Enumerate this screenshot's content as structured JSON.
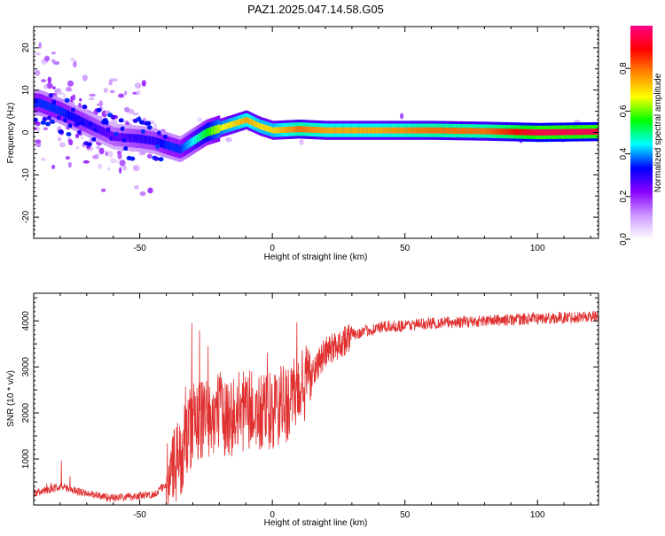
{
  "title": "PAZ1.2025.047.14.58.G05",
  "chart_data": [
    {
      "type": "heatmap",
      "xlabel": "Height of straight line (km)",
      "ylabel": "Frequency (Hz)",
      "xlim": [
        -90,
        123
      ],
      "ylim": [
        -25,
        25
      ],
      "x_ticks": [
        -50,
        0,
        50,
        100
      ],
      "y_ticks": [
        -20,
        -10,
        0,
        10,
        20
      ],
      "colorbar": {
        "label": "Normalized spectral amplitude",
        "range": [
          0,
          1
        ],
        "ticks": [
          "0.0",
          "0.2",
          "0.4",
          "0.6",
          "0.8"
        ],
        "colors": [
          "#ffffff",
          "#cc99ff",
          "#8800ff",
          "#0000ff",
          "#00ffff",
          "#00ff00",
          "#ffff00",
          "#ff8800",
          "#ff0000",
          "#ff0088"
        ]
      },
      "ridge": {
        "x": [
          -88,
          -80,
          -70,
          -60,
          -50,
          -45,
          -40,
          -35,
          -30,
          -25,
          -20,
          -15,
          -10,
          -5,
          0,
          10,
          20,
          40,
          60,
          80,
          100,
          123
        ],
        "freq_hz": [
          7,
          5,
          2,
          -1,
          -1.5,
          -2,
          -3,
          -4,
          -2,
          0,
          1,
          2,
          3,
          1.5,
          0.5,
          0.8,
          0.5,
          0.5,
          0.5,
          0.3,
          0,
          0.2
        ],
        "amplitude": [
          0.35,
          0.35,
          0.3,
          0.25,
          0.3,
          0.3,
          0.35,
          0.35,
          0.45,
          0.55,
          0.65,
          0.7,
          0.75,
          0.7,
          0.7,
          0.8,
          0.75,
          0.75,
          0.8,
          0.8,
          0.95,
          0.95
        ]
      }
    },
    {
      "type": "line",
      "xlabel": "Height of straight line (km)",
      "ylabel": "SNR (10 * v/v)",
      "xlim": [
        -90,
        123
      ],
      "ylim": [
        0,
        4600
      ],
      "x_ticks": [
        -50,
        0,
        50,
        100
      ],
      "y_ticks": [
        1000,
        2000,
        3000,
        4000
      ],
      "color": "#e03030",
      "series": [
        {
          "x": [
            -90,
            -80,
            -70,
            -60,
            -50,
            -45,
            -40,
            -35,
            -30,
            -25,
            -20,
            -15,
            -10,
            -5,
            0,
            5,
            10,
            15,
            20,
            25,
            30,
            40,
            50,
            60,
            80,
            100,
            123
          ],
          "values": [
            250,
            400,
            250,
            150,
            200,
            220,
            450,
            1000,
            1800,
            1900,
            2000,
            1900,
            2100,
            1950,
            2000,
            2200,
            2400,
            2900,
            3300,
            3500,
            3700,
            3850,
            3900,
            3950,
            4000,
            4050,
            4100
          ]
        }
      ]
    }
  ]
}
